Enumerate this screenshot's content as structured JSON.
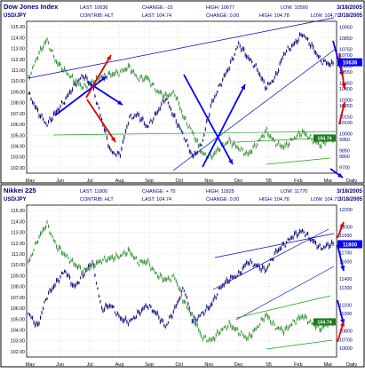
{
  "colors": {
    "outer_bg": "#ffffff",
    "panel_bg": "#ffffff",
    "frame": "#000000",
    "grid": "#c8c8c8",
    "header_text": "#000080",
    "right_axis_text": "#000080",
    "left_axis_text": "#000000",
    "price_series": "#00007a",
    "fx_series": "#2e8b2e",
    "trend_blue": "#0000c8",
    "trend_green": "#1ea01e",
    "arrow_blue": "#0000ff",
    "arrow_red": "#e00000",
    "last_box": "#0000ff",
    "fx_box": "#1a7a1a",
    "box_text": "#ffffff"
  },
  "chart_data": [
    {
      "type": "line",
      "title": "Dow Jones Index",
      "date_label": "3/18/2005",
      "header_fields": {
        "last": "LAST: 10636",
        "change": "CHANGE: -15",
        "high": "HIGH: 10677",
        "low": "LOW: 10590"
      },
      "subtitle": "USD/JPY",
      "subtitle_date": "3/18/2005",
      "subheader_fields": {
        "contrib": "CONTRIB: HLT",
        "last": "LAST: 104.74",
        "change": "CHANGE: 0.00",
        "high": "HIGH: 104.78",
        "low": "LOW: 104.71"
      },
      "x_ticks": [
        "May",
        "Jun",
        "Jul",
        "Aug",
        "Sep",
        "Oct",
        "Nov",
        "Dec",
        "'05",
        "Feb",
        "Mar",
        "Daily"
      ],
      "left_axis": {
        "min": 101.5,
        "max": 115.5,
        "ticks": [
          "115.00",
          "114.00",
          "113.00",
          "112.00",
          "111.00",
          "110.00",
          "109.00",
          "108.00",
          "107.00",
          "106.00",
          "105.00",
          "104.00",
          "103.00",
          "102.00"
        ]
      },
      "right_axis": {
        "min": 9650,
        "max": 11000,
        "ticks": [
          "10950",
          "10850",
          "10750",
          "10700",
          "10600",
          "10550",
          "10450",
          "10400",
          "10300",
          "10250",
          "10150",
          "10100",
          "10000",
          "9950",
          "9850",
          "9800",
          "9700"
        ]
      },
      "last_value_label": "10636",
      "fx_value_label": "104.74",
      "series": [
        {
          "name": "Dow Jones Index",
          "axis": "right",
          "style": "ohlc",
          "x": [
            0,
            0.03,
            0.06,
            0.09,
            0.12,
            0.15,
            0.18,
            0.21,
            0.24,
            0.27,
            0.3,
            0.33,
            0.36,
            0.39,
            0.42,
            0.45,
            0.48,
            0.51,
            0.54,
            0.57,
            0.6,
            0.63,
            0.66,
            0.69,
            0.72,
            0.75,
            0.78,
            0.81,
            0.84,
            0.87,
            0.9,
            0.93,
            0.96,
            0.99
          ],
          "values": [
            10360,
            10200,
            10080,
            10190,
            10300,
            10430,
            10520,
            10420,
            10130,
            9840,
            9810,
            10140,
            10170,
            10060,
            10180,
            10320,
            10140,
            9980,
            9790,
            9920,
            10260,
            10440,
            10600,
            10800,
            10680,
            10580,
            10410,
            10500,
            10720,
            10790,
            10890,
            10780,
            10650,
            10620
          ]
        },
        {
          "name": "USD/JPY",
          "axis": "left",
          "style": "ohlc",
          "x": [
            0,
            0.03,
            0.06,
            0.09,
            0.12,
            0.15,
            0.18,
            0.21,
            0.24,
            0.27,
            0.3,
            0.33,
            0.36,
            0.39,
            0.42,
            0.45,
            0.48,
            0.51,
            0.54,
            0.57,
            0.6,
            0.63,
            0.66,
            0.69,
            0.72,
            0.75,
            0.78,
            0.81,
            0.84,
            0.87,
            0.9,
            0.93,
            0.96,
            0.99
          ],
          "values": [
            110.2,
            112.3,
            113.8,
            111.8,
            110.9,
            110.1,
            109.4,
            109.9,
            110.4,
            110.6,
            110.8,
            111.3,
            110.2,
            110.3,
            109.1,
            108.6,
            108.9,
            106.6,
            105.2,
            103.3,
            103.0,
            103.9,
            104.5,
            103.8,
            103.2,
            104.2,
            105.4,
            104.3,
            103.9,
            104.7,
            105.3,
            104.6,
            104.1,
            104.7
          ]
        }
      ]
    },
    {
      "type": "line",
      "title": "Nikkei 225",
      "date_label": "3/18/2005",
      "header_fields": {
        "last": "LAST: 11800",
        "change": "CHANGE: + 70",
        "high": "HIGH: 11825",
        "low": "LOW: 11770"
      },
      "subtitle": "USD/JPY",
      "subtitle_date": "3/18/2005",
      "subheader_fields": {
        "contrib": "CONTRIB: HLT",
        "last": "LAST: 104.74",
        "change": "CHANGE: 0.00",
        "high": "HIGH: 104.78",
        "low": "LOW: 104.71"
      },
      "x_ticks": [
        "May",
        "Jun",
        "Jul",
        "Aug",
        "Sep",
        "Oct",
        "Nov",
        "Dec",
        "'05",
        "Feb",
        "Mar",
        "Daily"
      ],
      "left_axis": {
        "min": 101.5,
        "max": 115.5,
        "ticks": [
          "115.00",
          "114.00",
          "113.00",
          "112.00",
          "111.00",
          "110.00",
          "109.00",
          "108.00",
          "107.00",
          "106.00",
          "105.00",
          "104.00",
          "103.00",
          "102.00"
        ]
      },
      "right_axis": {
        "min": 10500,
        "max": 12250,
        "ticks": [
          "12200",
          "12000",
          "11900",
          "11700",
          "11600",
          "11400",
          "11300",
          "11100",
          "11000",
          "10800",
          "10700",
          "10600"
        ]
      },
      "last_value_label": "11800",
      "fx_value_label": "104.74",
      "series": [
        {
          "name": "Nikkei 225",
          "axis": "right",
          "style": "ohlc",
          "x": [
            0,
            0.03,
            0.06,
            0.09,
            0.12,
            0.15,
            0.18,
            0.21,
            0.24,
            0.27,
            0.3,
            0.33,
            0.36,
            0.39,
            0.42,
            0.45,
            0.48,
            0.51,
            0.54,
            0.57,
            0.6,
            0.63,
            0.66,
            0.69,
            0.72,
            0.75,
            0.78,
            0.81,
            0.84,
            0.87,
            0.9,
            0.93,
            0.96,
            0.99
          ],
          "values": [
            11000,
            10850,
            11200,
            11350,
            11500,
            11300,
            11450,
            11600,
            11050,
            11100,
            10950,
            10900,
            11000,
            11100,
            11000,
            10850,
            11050,
            11300,
            10900,
            11000,
            11100,
            11300,
            11400,
            11450,
            11600,
            11550,
            11500,
            11700,
            11800,
            11900,
            11950,
            11850,
            11750,
            11800
          ]
        },
        {
          "name": "USD/JPY",
          "axis": "left",
          "style": "ohlc",
          "x": [
            0,
            0.03,
            0.06,
            0.09,
            0.12,
            0.15,
            0.18,
            0.21,
            0.24,
            0.27,
            0.3,
            0.33,
            0.36,
            0.39,
            0.42,
            0.45,
            0.48,
            0.51,
            0.54,
            0.57,
            0.6,
            0.63,
            0.66,
            0.69,
            0.72,
            0.75,
            0.78,
            0.81,
            0.84,
            0.87,
            0.9,
            0.93,
            0.96,
            0.99
          ],
          "values": [
            110.2,
            112.3,
            113.8,
            111.8,
            110.9,
            110.1,
            109.4,
            109.9,
            110.4,
            110.6,
            110.8,
            111.3,
            110.2,
            110.3,
            109.1,
            108.6,
            108.9,
            106.6,
            105.2,
            103.3,
            103.0,
            103.9,
            104.5,
            103.8,
            103.2,
            104.2,
            105.4,
            104.3,
            103.9,
            104.7,
            105.3,
            104.6,
            104.1,
            104.7
          ]
        }
      ]
    }
  ]
}
